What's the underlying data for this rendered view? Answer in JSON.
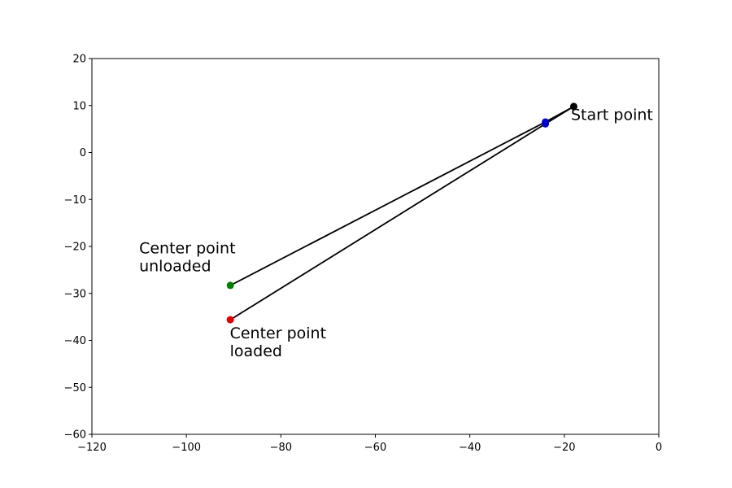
{
  "chart_data": {
    "type": "scatter",
    "title": "",
    "xlabel": "",
    "ylabel": "",
    "xlim": [
      -120,
      0
    ],
    "ylim": [
      -60,
      20
    ],
    "xticks": [
      -120,
      -100,
      -80,
      -60,
      -40,
      -20,
      0
    ],
    "yticks": [
      -60,
      -50,
      -40,
      -30,
      -20,
      -10,
      0,
      10,
      20
    ],
    "grid": false,
    "points": [
      {
        "x": -18,
        "y": 9.8,
        "color": "#000000"
      },
      {
        "x": -24,
        "y": 6.5,
        "color": "#0000cc"
      },
      {
        "x": -24,
        "y": 6.1,
        "color": "#0000cc"
      },
      {
        "x": -90.7,
        "y": -28.3,
        "color": "#008000"
      },
      {
        "x": -90.7,
        "y": -35.6,
        "color": "#e00000"
      }
    ],
    "segments": [
      {
        "from": [
          -90.7,
          -28.3
        ],
        "to": [
          -24,
          6.5
        ]
      },
      {
        "from": [
          -24,
          6.5
        ],
        "to": [
          -18,
          9.8
        ]
      },
      {
        "from": [
          -90.7,
          -35.6
        ],
        "to": [
          -24,
          6.1
        ]
      },
      {
        "from": [
          -24,
          6.1
        ],
        "to": [
          -18,
          9.8
        ]
      }
    ],
    "line_color": "#000000",
    "annotations": [
      {
        "lines": [
          "Start point"
        ],
        "x": -18.6,
        "y": 6.9
      },
      {
        "lines": [
          "Center point",
          "unloaded"
        ],
        "x": -110,
        "y": -21.5
      },
      {
        "lines": [
          "Center point",
          "loaded"
        ],
        "x": -90.8,
        "y": -39.6
      }
    ]
  }
}
